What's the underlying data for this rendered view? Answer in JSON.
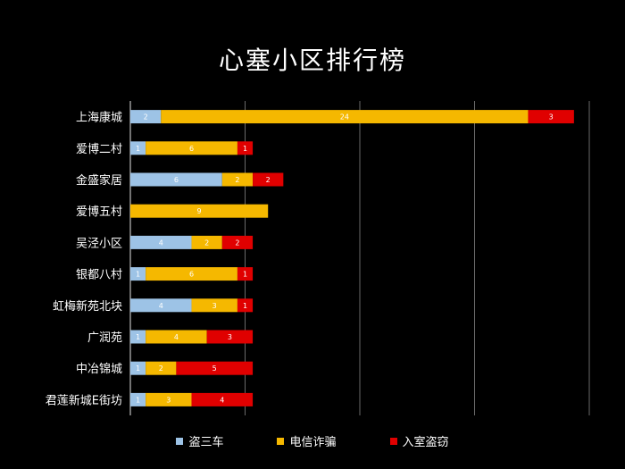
{
  "chart_data": {
    "type": "bar",
    "orientation": "horizontal",
    "stacked": true,
    "title": "心塞小区排行榜",
    "categories": [
      "上海康城",
      "爱博二村",
      "金盛家居",
      "爱博五村",
      "吴泾小区",
      "银都八村",
      "虹梅新苑北块",
      "广润苑",
      "中冶锦城",
      "君莲新城E街坊"
    ],
    "series": [
      {
        "name": "盗三车",
        "color": "#9dc3e6",
        "values": [
          2,
          1,
          6,
          0,
          4,
          1,
          4,
          1,
          1,
          1
        ]
      },
      {
        "name": "电信诈骗",
        "color": "#f5b800",
        "values": [
          24,
          6,
          2,
          9,
          2,
          6,
          3,
          4,
          2,
          3
        ]
      },
      {
        "name": "入室盗窃",
        "color": "#e00000",
        "values": [
          3,
          1,
          2,
          0,
          2,
          1,
          1,
          3,
          5,
          4
        ]
      }
    ],
    "xlim": [
      0,
      30
    ],
    "x_gridlines": [
      0,
      7.5,
      15,
      22.5,
      30
    ],
    "grid": true,
    "legend_position": "bottom"
  }
}
